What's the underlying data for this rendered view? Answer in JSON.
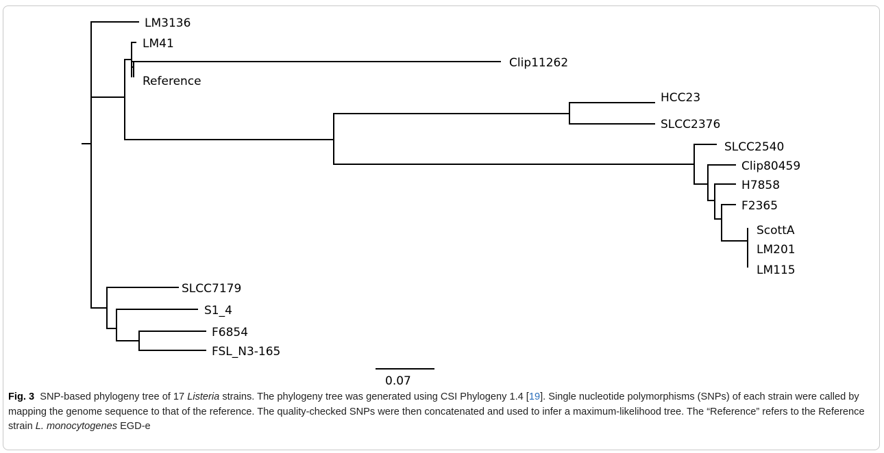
{
  "tree": {
    "leaves": {
      "lm3136": "LM3136",
      "lm41": "LM41",
      "clip11262": "Clip11262",
      "reference": "Reference",
      "hcc23": "HCC23",
      "slcc2376": "SLCC2376",
      "slcc2540": "SLCC2540",
      "clip80459": "Clip80459",
      "h7858": "H7858",
      "f2365": "F2365",
      "scotta": "ScottA",
      "lm201": "LM201",
      "lm115": "LM115",
      "slcc7179": "SLCC7179",
      "s1_4": "S1_4",
      "f6854": "F6854",
      "fsl_n3_165": "FSL_N3-165"
    },
    "scale_bar_label": "0.07"
  },
  "caption": {
    "fig_label": "Fig. 3",
    "text_1": "SNP-based phylogeny tree of 17 ",
    "italic_1": "Listeria",
    "text_2": " strains. The phylogeny tree was generated using CSI Phylogeny 1.4 [",
    "ref": "19",
    "text_3": "]. Single nucleotide polymorphisms (SNPs) of each strain were called by mapping the genome sequence to that of the reference. The quality-checked SNPs were then concatenated and used to infer a maximum-likelihood tree. The “Reference” refers to the Reference strain ",
    "italic_2": "L. monocytogenes",
    "text_4": " EGD-e"
  }
}
